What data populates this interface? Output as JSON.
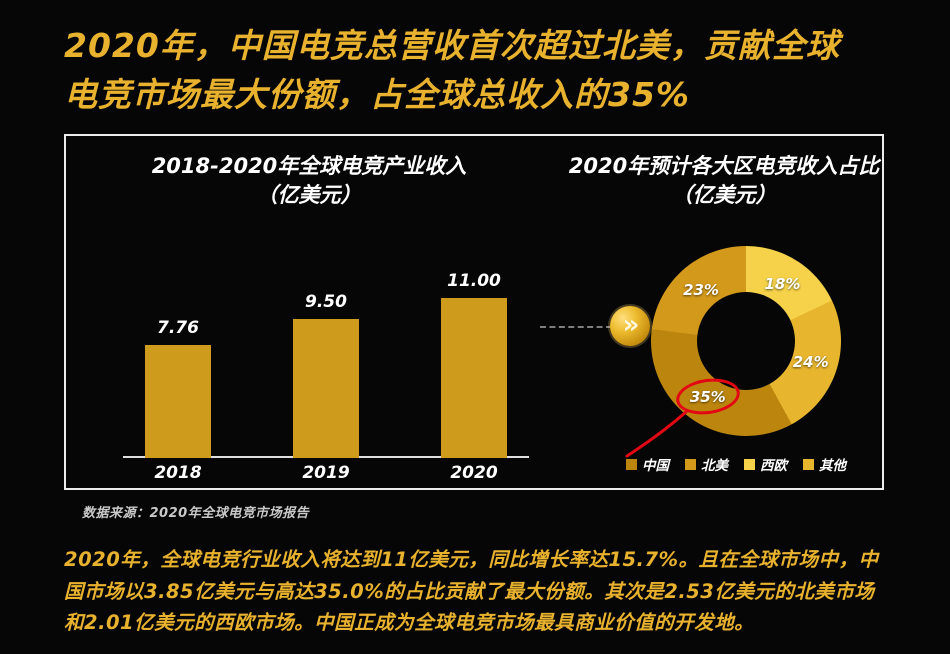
{
  "page": {
    "title": "2020年，中国电竞总营收首次超过北美，贡献全球电竞市场最大份额，占全球总收入的35%",
    "source_note": "数据来源：2020年全球电竞市场报告",
    "footer_paragraph": "2020年，全球电竞行业收入将达到11亿美元，同比增长率达15.7%。且在全球市场中，中国市场以3.85亿美元与高达35.0%的占比贡献了最大份额。其次是2.53亿美元的北美市场和2.01亿美元的西欧市场。中国正成为全球电竞市场最具商业价值的开发地。"
  },
  "icons": {
    "arrow_glyph": "»"
  },
  "colors": {
    "background": "#060606",
    "accent_gold": "#e9b22e",
    "panel_border": "#ececec",
    "annotation_red": "#e30613",
    "text_white": "#ffffff"
  },
  "chart_data": [
    {
      "type": "bar",
      "title": "2018-2020年全球电竞产业收入",
      "subtitle": "（亿美元）",
      "categories": [
        "2018",
        "2019",
        "2020"
      ],
      "values": [
        7.76,
        9.5,
        11.0
      ],
      "value_labels": [
        "7.76",
        "9.50",
        "11.00"
      ],
      "bar_color": "#cf9b1d",
      "xlabel": "",
      "ylabel": "",
      "ylim": [
        0,
        12
      ],
      "grid": false
    },
    {
      "type": "pie",
      "title": "2020年预计各大区电竞收入占比",
      "subtitle": "（亿美元）",
      "donut": true,
      "start_angle_deg": 0,
      "series": [
        {
          "name": "西欧",
          "value": 18,
          "label": "18%",
          "color": "#f5d24a"
        },
        {
          "name": "其他",
          "value": 24,
          "label": "24%",
          "color": "#e8b62e"
        },
        {
          "name": "中国",
          "value": 35,
          "label": "35%",
          "color": "#bc860e"
        },
        {
          "name": "北美",
          "value": 23,
          "label": "23%",
          "color": "#d3991a"
        }
      ],
      "legend_order": [
        "中国",
        "北美",
        "西欧",
        "其他"
      ],
      "legend_position": "bottom",
      "annotation": {
        "target": "35%",
        "shape": "red-ellipse-with-line",
        "color": "#e30613"
      }
    }
  ]
}
